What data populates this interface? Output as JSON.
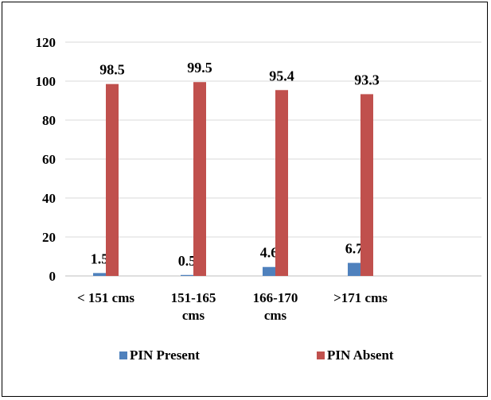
{
  "chart_data": {
    "type": "bar",
    "categories": [
      [
        "< 151 cms"
      ],
      [
        "151-165",
        "cms"
      ],
      [
        "166-170",
        "cms"
      ],
      [
        ">171 cms"
      ]
    ],
    "series": [
      {
        "name": "PIN Present",
        "values": [
          1.5,
          0.5,
          4.6,
          6.7
        ],
        "labels": [
          "1.5",
          "0.5",
          "4.6",
          "6.7"
        ],
        "color": "#4f81bd"
      },
      {
        "name": "PIN Absent",
        "values": [
          98.5,
          99.5,
          95.4,
          93.3
        ],
        "labels": [
          "98.5",
          "99.5",
          "95.4",
          "93.3"
        ],
        "color": "#c0504d"
      }
    ],
    "yticks": [
      "0",
      "20",
      "40",
      "60",
      "80",
      "100",
      "120"
    ],
    "ylim": [
      0,
      120
    ],
    "grid": true,
    "legend": "bottom"
  }
}
